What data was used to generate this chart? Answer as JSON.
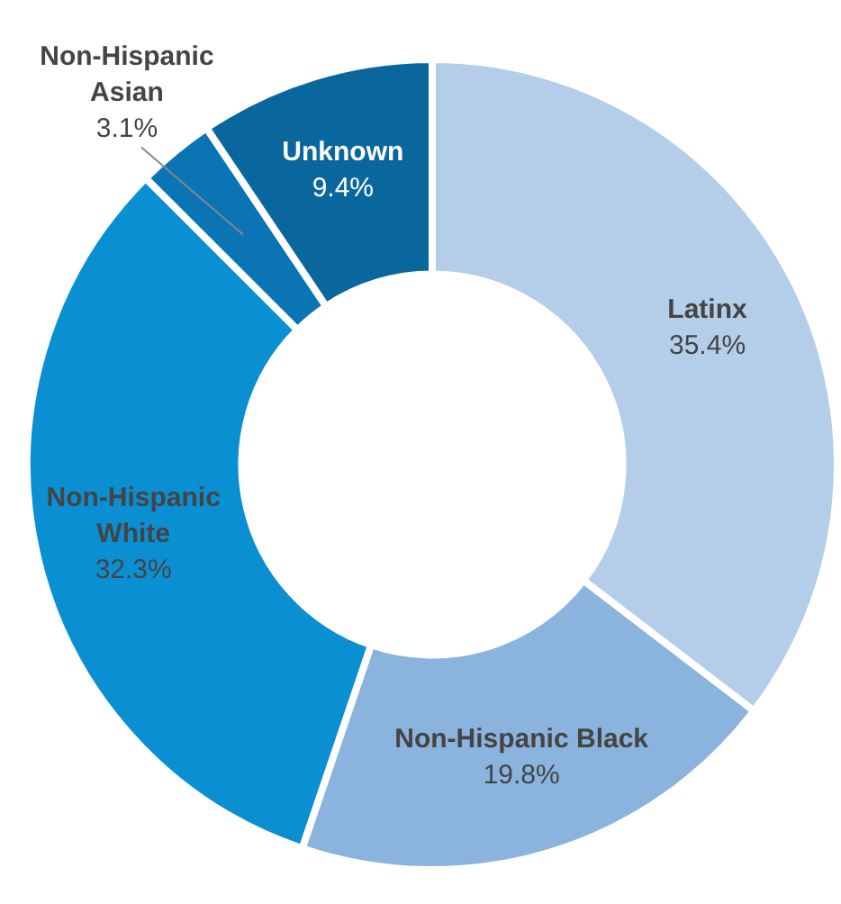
{
  "chart_data": {
    "type": "donut",
    "categories": [
      "Latinx",
      "Non-Hispanic Black",
      "Non-Hispanic\nWhite",
      "Non-Hispanic\nAsian",
      "Unknown"
    ],
    "values": [
      35.4,
      19.8,
      32.3,
      3.1,
      9.4
    ],
    "value_labels": [
      "35.4%",
      "19.8%",
      "32.3%",
      "3.1%",
      "9.4%"
    ],
    "colors": [
      "#b4cee9",
      "#8ab4de",
      "#0b8fd3",
      "#0b74b5",
      "#0a679e"
    ],
    "legend": false
  }
}
